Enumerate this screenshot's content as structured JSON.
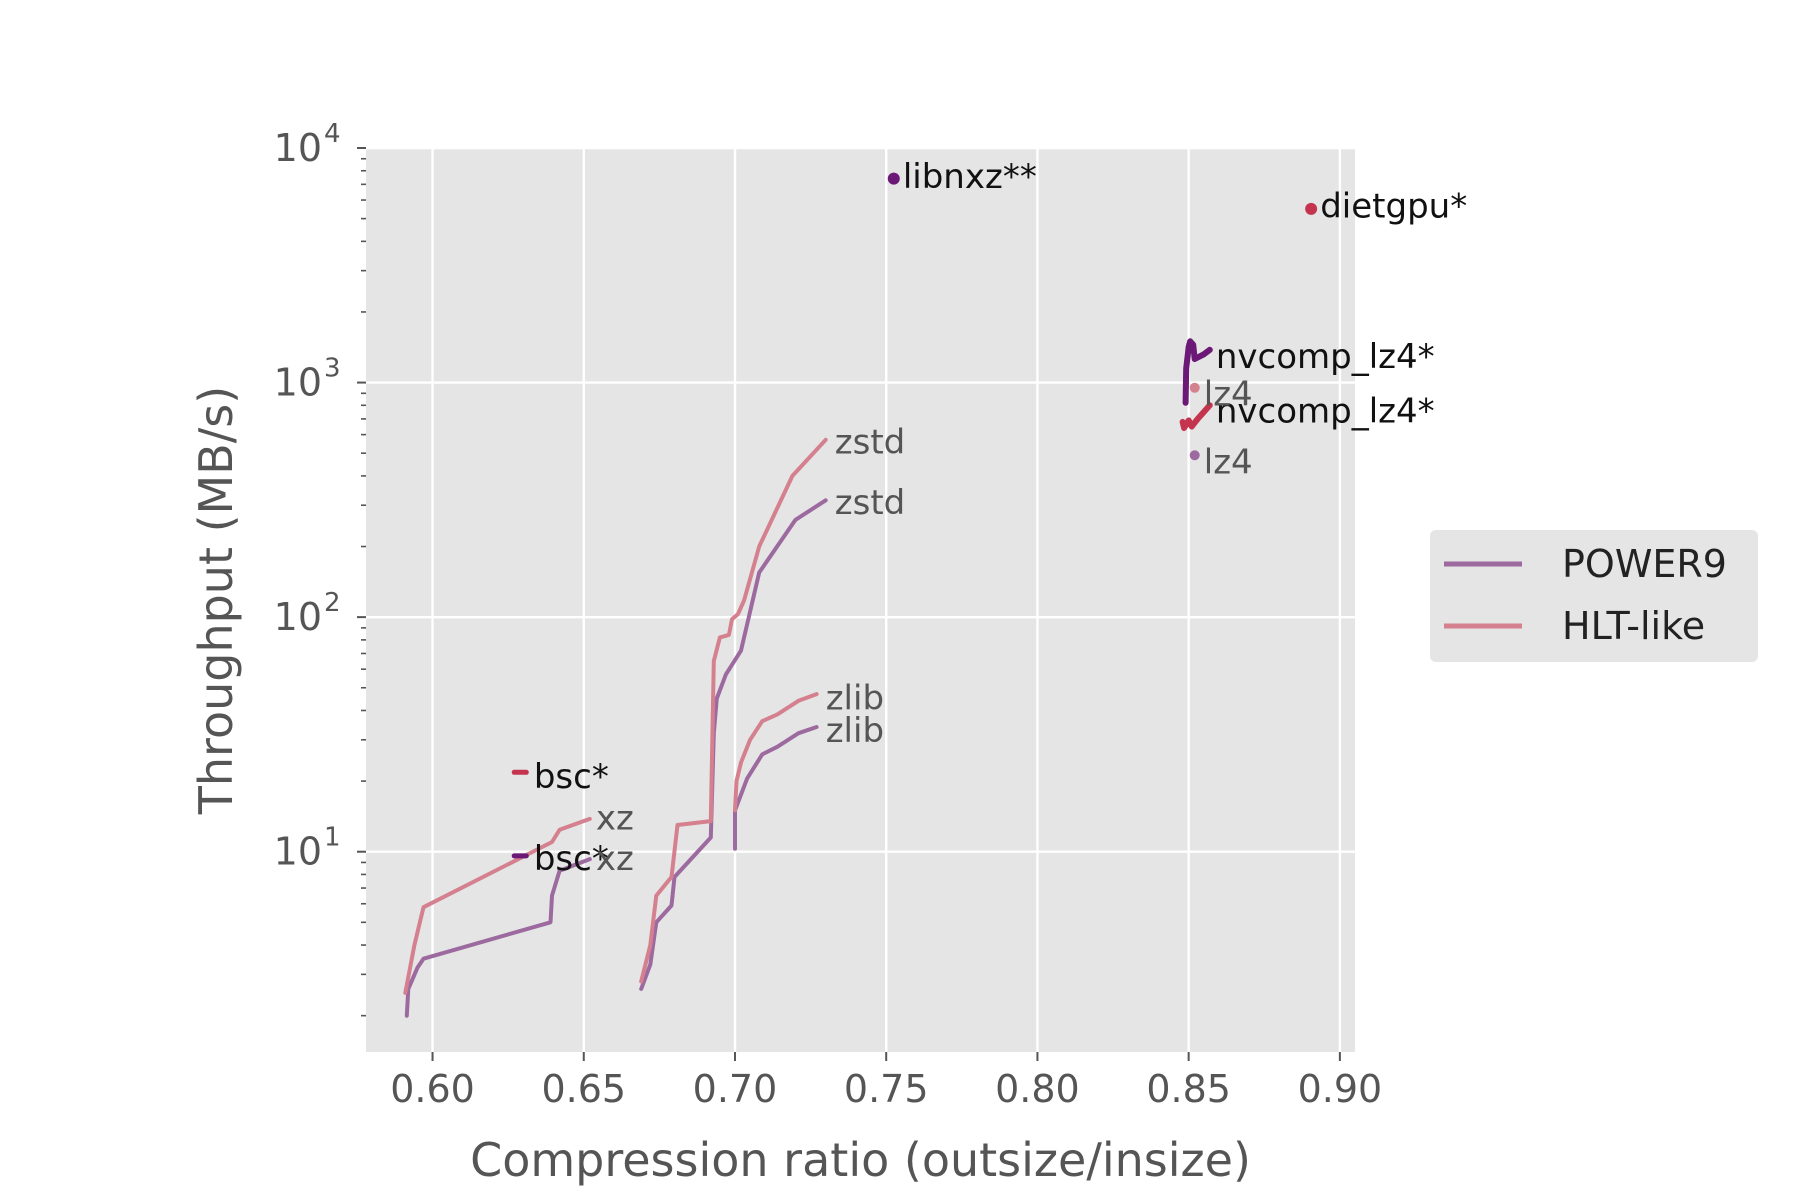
{
  "chart_data": {
    "type": "line",
    "xlabel": "Compression ratio (outsize/insize)",
    "ylabel": "Throughput (MB/s)",
    "xlim": [
      0.578,
      0.905
    ],
    "ylim": [
      1.4,
      10000
    ],
    "yscale": "log",
    "x_ticks": [
      0.6,
      0.65,
      0.7,
      0.75,
      0.8,
      0.85,
      0.9
    ],
    "x_tick_labels": [
      "0.60",
      "0.65",
      "0.70",
      "0.75",
      "0.80",
      "0.85",
      "0.90"
    ],
    "y_ticks": [
      10,
      100,
      1000,
      10000
    ],
    "y_tick_labels": [
      {
        "base": "10",
        "exp": "1"
      },
      {
        "base": "10",
        "exp": "2"
      },
      {
        "base": "10",
        "exp": "3"
      },
      {
        "base": "10",
        "exp": "4"
      }
    ],
    "grid": true,
    "background": "#e5e5e5",
    "legend_position": "right",
    "legend": [
      {
        "label": "POWER9",
        "color": "#9c6a9f"
      },
      {
        "label": "HLT-like",
        "color": "#d4808e"
      }
    ],
    "colors": {
      "power9_line": "#9c6a9f",
      "hlt_line": "#d4808e",
      "power9_accel": "#6b1877",
      "hlt_accel": "#c4344f",
      "label_gray": "#555555",
      "label_black": "#111111"
    },
    "series": [
      {
        "name": "xz",
        "legend": "POWER9",
        "color": "#9c6a9f",
        "points": [
          [
            0.5915,
            2.0
          ],
          [
            0.592,
            2.6
          ],
          [
            0.595,
            3.2
          ],
          [
            0.597,
            3.5
          ],
          [
            0.639,
            5.0
          ],
          [
            0.6395,
            6.5
          ],
          [
            0.642,
            8.3
          ],
          [
            0.652,
            9.3
          ]
        ]
      },
      {
        "name": "xz",
        "legend": "HLT-like",
        "color": "#d4808e",
        "points": [
          [
            0.591,
            2.5
          ],
          [
            0.594,
            4.0
          ],
          [
            0.597,
            5.8
          ],
          [
            0.6395,
            11.0
          ],
          [
            0.642,
            12.4
          ],
          [
            0.652,
            13.8
          ]
        ]
      },
      {
        "name": "zstd",
        "legend": "POWER9",
        "color": "#9c6a9f",
        "points": [
          [
            0.669,
            2.6
          ],
          [
            0.672,
            3.3
          ],
          [
            0.674,
            5.0
          ],
          [
            0.679,
            5.9
          ],
          [
            0.68,
            7.8
          ],
          [
            0.692,
            11.5
          ],
          [
            0.693,
            32
          ],
          [
            0.694,
            45
          ],
          [
            0.697,
            57
          ],
          [
            0.702,
            72
          ],
          [
            0.708,
            155
          ],
          [
            0.72,
            260
          ],
          [
            0.73,
            315
          ]
        ]
      },
      {
        "name": "zstd",
        "legend": "HLT-like",
        "color": "#d4808e",
        "points": [
          [
            0.669,
            2.8
          ],
          [
            0.672,
            4.0
          ],
          [
            0.674,
            6.5
          ],
          [
            0.679,
            7.8
          ],
          [
            0.681,
            13.0
          ],
          [
            0.692,
            13.5
          ],
          [
            0.693,
            65
          ],
          [
            0.695,
            82
          ],
          [
            0.698,
            84
          ],
          [
            0.699,
            98
          ],
          [
            0.701,
            103
          ],
          [
            0.703,
            118
          ],
          [
            0.708,
            200
          ],
          [
            0.719,
            400
          ],
          [
            0.73,
            570
          ]
        ]
      },
      {
        "name": "zlib",
        "legend": "POWER9",
        "color": "#9c6a9f",
        "points": [
          [
            0.7,
            10.3
          ],
          [
            0.7,
            15.0
          ],
          [
            0.704,
            20.5
          ],
          [
            0.709,
            26.0
          ],
          [
            0.714,
            28.0
          ],
          [
            0.721,
            32.0
          ],
          [
            0.727,
            34.0
          ]
        ]
      },
      {
        "name": "zlib",
        "legend": "HLT-like",
        "color": "#d4808e",
        "points": [
          [
            0.7,
            15.0
          ],
          [
            0.7005,
            20.0
          ],
          [
            0.702,
            24.0
          ],
          [
            0.705,
            30.0
          ],
          [
            0.709,
            36.0
          ],
          [
            0.714,
            38.5
          ],
          [
            0.721,
            44.0
          ],
          [
            0.727,
            47.0
          ]
        ]
      },
      {
        "name": "nvcomp_lz4*",
        "legend": "POWER9",
        "color": "#6b1877",
        "width": 6,
        "points": [
          [
            0.849,
            820
          ],
          [
            0.8492,
            1150
          ],
          [
            0.85,
            1420
          ],
          [
            0.8505,
            1500
          ],
          [
            0.8515,
            1450
          ],
          [
            0.852,
            1260
          ],
          [
            0.855,
            1320
          ],
          [
            0.857,
            1380
          ]
        ]
      },
      {
        "name": "nvcomp_lz4*",
        "legend": "HLT-like",
        "color": "#c4344f",
        "width": 6,
        "points": [
          [
            0.848,
            680
          ],
          [
            0.8485,
            640
          ],
          [
            0.85,
            690
          ],
          [
            0.851,
            650
          ],
          [
            0.853,
            700
          ],
          [
            0.857,
            800
          ]
        ]
      },
      {
        "name": "bsc*",
        "legend": "HLT-like",
        "color": "#c4344f",
        "width": 5,
        "points": [
          [
            0.627,
            21.8
          ],
          [
            0.631,
            21.8
          ]
        ]
      },
      {
        "name": "bsc*",
        "legend": "POWER9",
        "color": "#6b1877",
        "width": 5,
        "points": [
          [
            0.627,
            9.6
          ],
          [
            0.631,
            9.6
          ]
        ]
      }
    ],
    "points": [
      {
        "name": "libnxz**",
        "x": 0.7525,
        "y": 7400,
        "color": "#6b1877",
        "r": 6
      },
      {
        "name": "dietgpu*",
        "x": 0.8905,
        "y": 5500,
        "color": "#c4344f",
        "r": 6
      },
      {
        "name": "lz4",
        "x": 0.852,
        "y": 950,
        "color": "#d4808e",
        "r": 5
      },
      {
        "name": "lz4",
        "x": 0.852,
        "y": 490,
        "color": "#9c6a9f",
        "r": 5
      }
    ],
    "labels": [
      {
        "text": "libnxz**",
        "x": 0.7555,
        "y": 7600,
        "color": "#111111"
      },
      {
        "text": "dietgpu*",
        "x": 0.8935,
        "y": 5700,
        "color": "#111111"
      },
      {
        "text": "nvcomp_lz4*",
        "x": 0.859,
        "y": 1300,
        "color": "#111111"
      },
      {
        "text": "nvcomp_lz4*",
        "x": 0.859,
        "y": 760,
        "color": "#111111"
      },
      {
        "text": "lz4",
        "x": 0.855,
        "y": 900,
        "color": "#555555"
      },
      {
        "text": "lz4",
        "x": 0.855,
        "y": 460,
        "color": "#555555"
      },
      {
        "text": "zstd",
        "x": 0.733,
        "y": 560,
        "color": "#555555"
      },
      {
        "text": "zstd",
        "x": 0.733,
        "y": 310,
        "color": "#555555"
      },
      {
        "text": "zlib",
        "x": 0.73,
        "y": 45.5,
        "color": "#555555"
      },
      {
        "text": "zlib",
        "x": 0.73,
        "y": 33,
        "color": "#555555"
      },
      {
        "text": "bsc*",
        "x": 0.6335,
        "y": 21.0,
        "color": "#111111"
      },
      {
        "text": "bsc*",
        "x": 0.6335,
        "y": 9.4,
        "color": "#111111"
      },
      {
        "text": "xz",
        "x": 0.654,
        "y": 14.0,
        "color": "#555555"
      },
      {
        "text": "xz",
        "x": 0.654,
        "y": 9.4,
        "color": "#555555"
      }
    ]
  }
}
